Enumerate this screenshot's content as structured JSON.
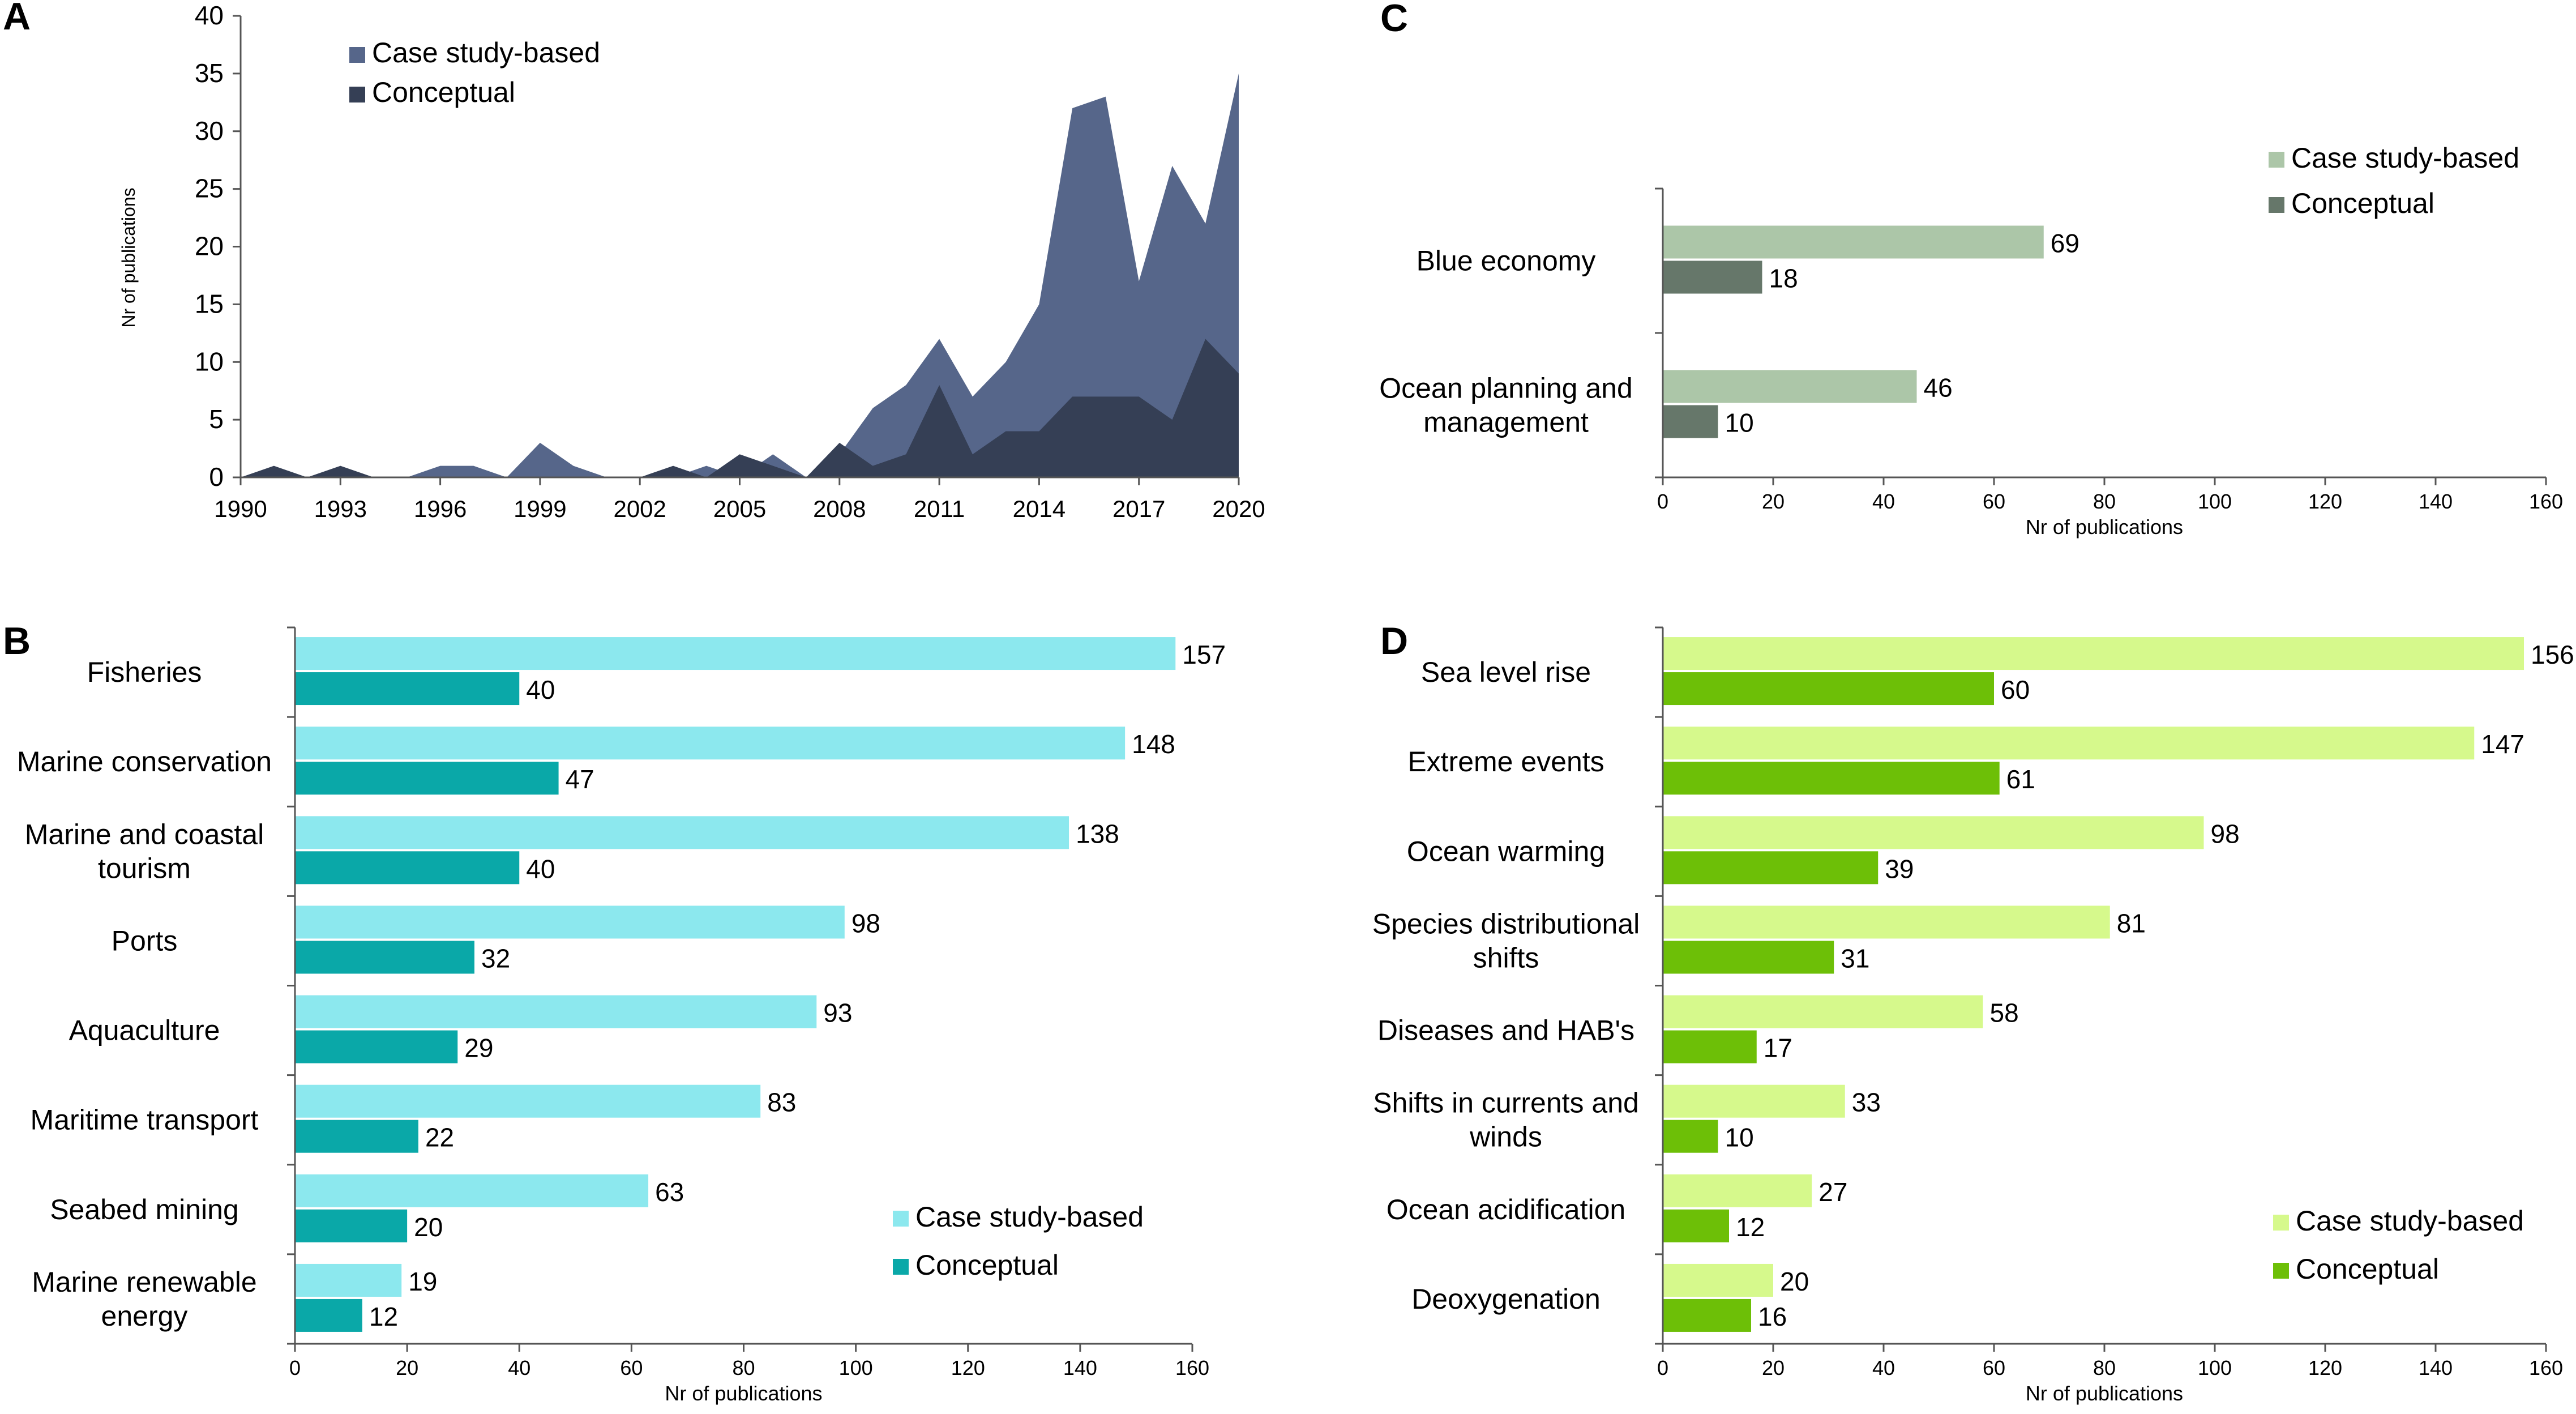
{
  "figure": {
    "colors": {
      "axis": "#555555",
      "text": "#000000",
      "a_case": "#56668a",
      "a_conceptual": "#353f55",
      "b_case": "#8ce8ee",
      "b_conceptual": "#0aa8a8",
      "c_case": "#acc6a8",
      "c_conceptual": "#66776a",
      "d_case": "#d6f98c",
      "d_conceptual": "#6dbf07"
    }
  },
  "chart_data": [
    {
      "panel": "A",
      "type": "area",
      "ylabel": "Nr of publications",
      "xlabel": "",
      "ylim": [
        0,
        40
      ],
      "yticks": [
        0,
        5,
        10,
        15,
        20,
        25,
        30,
        35,
        40
      ],
      "xticks": [
        1990,
        1993,
        1996,
        1999,
        2002,
        2005,
        2008,
        2011,
        2014,
        2017,
        2020
      ],
      "x": [
        1990,
        1991,
        1992,
        1993,
        1994,
        1995,
        1996,
        1997,
        1998,
        1999,
        2000,
        2001,
        2002,
        2003,
        2004,
        2005,
        2006,
        2007,
        2008,
        2009,
        2010,
        2011,
        2012,
        2013,
        2014,
        2015,
        2016,
        2017,
        2018,
        2019,
        2020
      ],
      "series": [
        {
          "name": "Case study-based",
          "values": [
            0,
            0,
            0,
            0,
            0,
            0,
            1,
            1,
            0,
            3,
            1,
            0,
            0,
            0,
            1,
            0,
            2,
            0,
            2,
            6,
            8,
            12,
            7,
            10,
            15,
            32,
            33,
            17,
            27,
            22,
            35
          ]
        },
        {
          "name": "Conceptual",
          "values": [
            0,
            1,
            0,
            1,
            0,
            0,
            0,
            0,
            0,
            0,
            0,
            0,
            0,
            1,
            0,
            2,
            1,
            0,
            3,
            1,
            2,
            8,
            2,
            4,
            4,
            7,
            7,
            7,
            5,
            12,
            9
          ]
        }
      ],
      "legend": [
        "Case study-based",
        "Conceptual"
      ],
      "legend_position": "top-left"
    },
    {
      "panel": "B",
      "type": "bar",
      "orientation": "horizontal",
      "xlabel": "Nr of publications",
      "xlim": [
        0,
        160
      ],
      "xticks": [
        0,
        20,
        40,
        60,
        80,
        100,
        120,
        140,
        160
      ],
      "categories": [
        [
          "Fisheries"
        ],
        [
          "Marine conservation"
        ],
        [
          "Marine and coastal",
          "tourism"
        ],
        [
          "Ports"
        ],
        [
          "Aquaculture"
        ],
        [
          "Maritime transport"
        ],
        [
          "Seabed mining"
        ],
        [
          "Marine renewable",
          "energy"
        ]
      ],
      "series": [
        {
          "name": "Case study-based",
          "values": [
            157,
            148,
            138,
            98,
            93,
            83,
            63,
            19
          ]
        },
        {
          "name": "Conceptual",
          "values": [
            40,
            47,
            40,
            32,
            29,
            22,
            20,
            12
          ]
        }
      ],
      "legend": [
        "Case study-based",
        "Conceptual"
      ],
      "legend_position": "bottom-right"
    },
    {
      "panel": "C",
      "type": "bar",
      "orientation": "horizontal",
      "xlabel": "Nr of publications",
      "xlim": [
        0,
        160
      ],
      "xticks": [
        0,
        20,
        40,
        60,
        80,
        100,
        120,
        140,
        160
      ],
      "categories": [
        [
          "Blue economy"
        ],
        [
          "Ocean planning and",
          "management"
        ]
      ],
      "series": [
        {
          "name": "Case study-based",
          "values": [
            69,
            46
          ]
        },
        {
          "name": "Conceptual",
          "values": [
            18,
            10
          ]
        }
      ],
      "legend": [
        "Case study-based",
        "Conceptual"
      ],
      "legend_position": "top-right"
    },
    {
      "panel": "D",
      "type": "bar",
      "orientation": "horizontal",
      "xlabel": "Nr of publications",
      "xlim": [
        0,
        160
      ],
      "xticks": [
        0,
        20,
        40,
        60,
        80,
        100,
        120,
        140,
        160
      ],
      "categories": [
        [
          "Sea level rise"
        ],
        [
          "Extreme events"
        ],
        [
          "Ocean warming"
        ],
        [
          "Species distributional",
          "shifts"
        ],
        [
          "Diseases and HAB's"
        ],
        [
          "Shifts in currents and",
          "winds"
        ],
        [
          "Ocean acidification"
        ],
        [
          "Deoxygenation"
        ]
      ],
      "series": [
        {
          "name": "Case study-based",
          "values": [
            156,
            147,
            98,
            81,
            58,
            33,
            27,
            20
          ]
        },
        {
          "name": "Conceptual",
          "values": [
            60,
            61,
            39,
            31,
            17,
            10,
            12,
            16
          ]
        }
      ],
      "legend": [
        "Case study-based",
        "Conceptual"
      ],
      "legend_position": "bottom-right"
    }
  ]
}
